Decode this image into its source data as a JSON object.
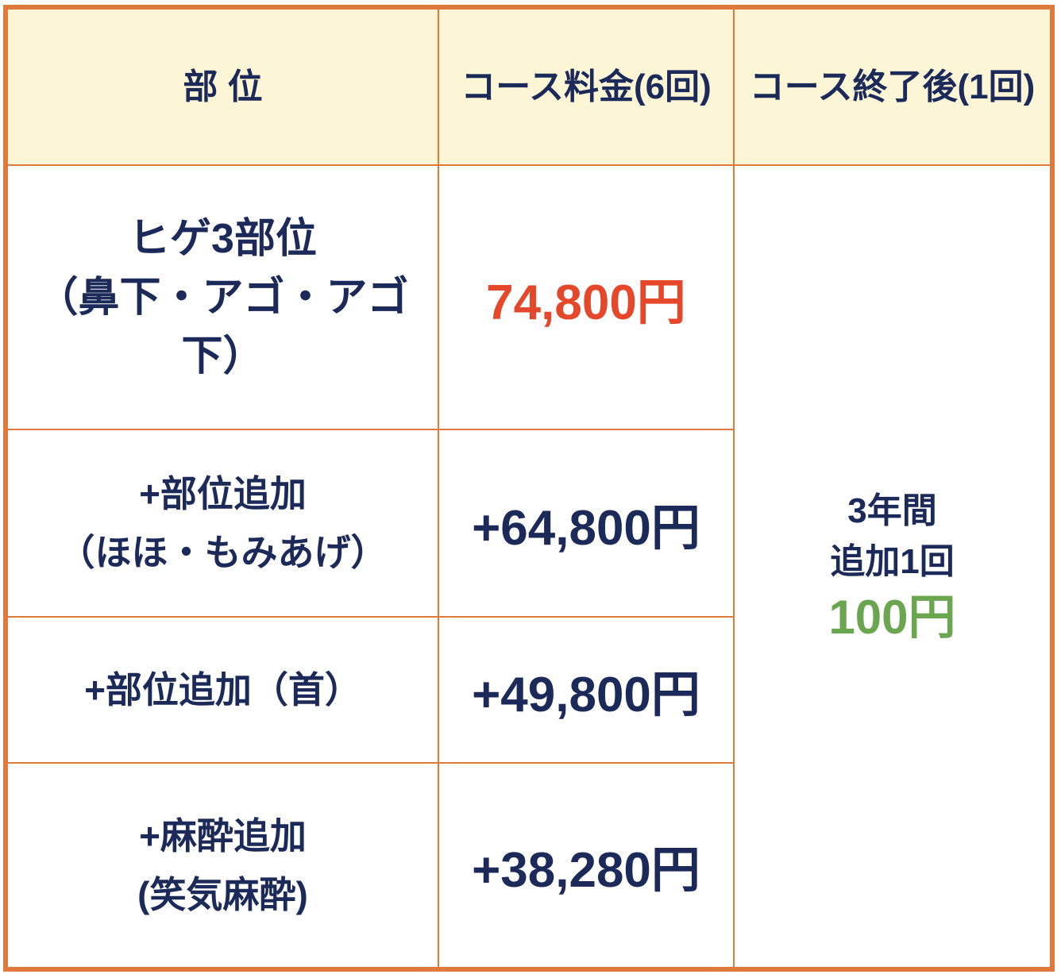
{
  "header": {
    "part": "部 位",
    "course_price": "コース料金(6回)",
    "after_course": "コース終了後(1回)"
  },
  "rows": [
    {
      "part_line1": "ヒゲ3部位",
      "part_line2": "（鼻下・アゴ・アゴ下）",
      "price": "74,800円"
    },
    {
      "part_line1": "+部位追加",
      "part_line2": "（ほほ・もみあげ）",
      "price": "+64,800円"
    },
    {
      "part_line1": "+部位追加（首）",
      "part_line2": "",
      "price": "+49,800円"
    },
    {
      "part_line1": "+麻酔追加",
      "part_line2": "(笑気麻酔)",
      "price": "+38,280円"
    }
  ],
  "after": {
    "line1": "3年間",
    "line2": "追加1回",
    "price": "100円"
  },
  "colors": {
    "border": "#e07a3c",
    "header_bg": "#fdf6d6",
    "text": "#1b2a58",
    "highlight_red": "#e4472a",
    "highlight_green": "#6aa64f"
  }
}
